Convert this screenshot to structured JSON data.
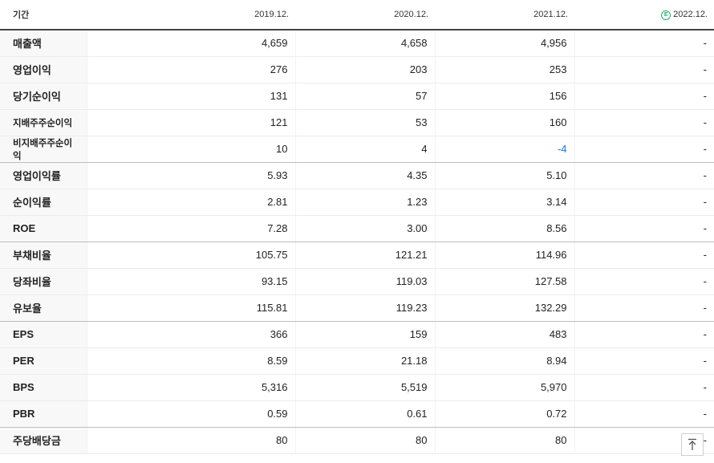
{
  "header": {
    "period_label": "기간",
    "periods": [
      "2019.12.",
      "2020.12.",
      "2021.12.",
      "2022.12."
    ],
    "estimate_badge": "E"
  },
  "rows": [
    {
      "label": "매출액",
      "values": [
        "4,659",
        "4,658",
        "4,956",
        "-"
      ]
    },
    {
      "label": "영업이익",
      "values": [
        "276",
        "203",
        "253",
        "-"
      ]
    },
    {
      "label": "당기순이익",
      "values": [
        "131",
        "57",
        "156",
        "-"
      ]
    },
    {
      "label": "지배주주순이익",
      "values": [
        "121",
        "53",
        "160",
        "-"
      ]
    },
    {
      "label": "비지배주주순이익",
      "values": [
        "10",
        "4",
        "-4",
        "-"
      ]
    },
    {
      "label": "영업이익률",
      "values": [
        "5.93",
        "4.35",
        "5.10",
        "-"
      ]
    },
    {
      "label": "순이익률",
      "values": [
        "2.81",
        "1.23",
        "3.14",
        "-"
      ]
    },
    {
      "label": "ROE",
      "values": [
        "7.28",
        "3.00",
        "8.56",
        "-"
      ]
    },
    {
      "label": "부채비율",
      "values": [
        "105.75",
        "121.21",
        "114.96",
        "-"
      ]
    },
    {
      "label": "당좌비율",
      "values": [
        "93.15",
        "119.03",
        "127.58",
        "-"
      ]
    },
    {
      "label": "유보율",
      "values": [
        "115.81",
        "119.23",
        "132.29",
        "-"
      ]
    },
    {
      "label": "EPS",
      "values": [
        "366",
        "159",
        "483",
        "-"
      ]
    },
    {
      "label": "PER",
      "values": [
        "8.59",
        "21.18",
        "8.94",
        "-"
      ]
    },
    {
      "label": "BPS",
      "values": [
        "5,316",
        "5,519",
        "5,970",
        "-"
      ]
    },
    {
      "label": "PBR",
      "values": [
        "0.59",
        "0.61",
        "0.72",
        "-"
      ]
    },
    {
      "label": "주당배당금",
      "values": [
        "80",
        "80",
        "80",
        "-"
      ]
    }
  ],
  "colors": {
    "negative": "#1a73e8",
    "estimate": "#1fb36b"
  },
  "scroll_top_icon": "arrow-up-to-top-icon"
}
